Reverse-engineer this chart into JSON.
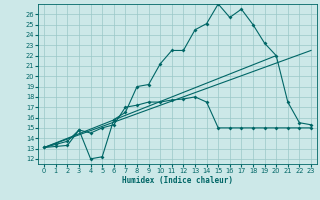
{
  "background_color": "#cce8e8",
  "grid_color": "#9ac8c8",
  "line_color": "#006666",
  "xlabel": "Humidex (Indice chaleur)",
  "xlim": [
    -0.5,
    23.5
  ],
  "ylim": [
    11.5,
    27.0
  ],
  "yticks": [
    12,
    13,
    14,
    15,
    16,
    17,
    18,
    19,
    20,
    21,
    22,
    23,
    24,
    25,
    26
  ],
  "xticks": [
    0,
    1,
    2,
    3,
    4,
    5,
    6,
    7,
    8,
    9,
    10,
    11,
    12,
    13,
    14,
    15,
    16,
    17,
    18,
    19,
    20,
    21,
    22,
    23
  ],
  "curve1_x": [
    0,
    1,
    2,
    3,
    4,
    5,
    6,
    7,
    8,
    9,
    10,
    11,
    12,
    13,
    14,
    15,
    16,
    17,
    18,
    19,
    20,
    21,
    22,
    23
  ],
  "curve1_y": [
    13.1,
    13.4,
    13.7,
    14.8,
    12.0,
    12.2,
    15.8,
    16.5,
    19.0,
    19.2,
    21.2,
    22.5,
    22.5,
    24.5,
    25.1,
    27.0,
    25.7,
    26.5,
    25.0,
    23.2,
    22.0,
    17.5,
    15.5,
    15.3
  ],
  "curve2_x": [
    0,
    1,
    2,
    3,
    4,
    5,
    6,
    7,
    8,
    9,
    10,
    11,
    12,
    13,
    14,
    15,
    16,
    17,
    18,
    19,
    20,
    21,
    22,
    23
  ],
  "curve2_y": [
    13.1,
    13.2,
    13.3,
    14.8,
    14.5,
    15.0,
    15.3,
    17.0,
    17.2,
    17.5,
    17.5,
    17.7,
    17.8,
    18.0,
    17.5,
    15.0,
    15.0,
    15.0,
    15.0,
    15.0,
    15.0,
    15.0,
    15.0,
    15.0
  ],
  "line3_x": [
    0,
    20
  ],
  "line3_y": [
    13.1,
    22.0
  ],
  "line4_x": [
    0,
    23
  ],
  "line4_y": [
    13.1,
    22.5
  ]
}
